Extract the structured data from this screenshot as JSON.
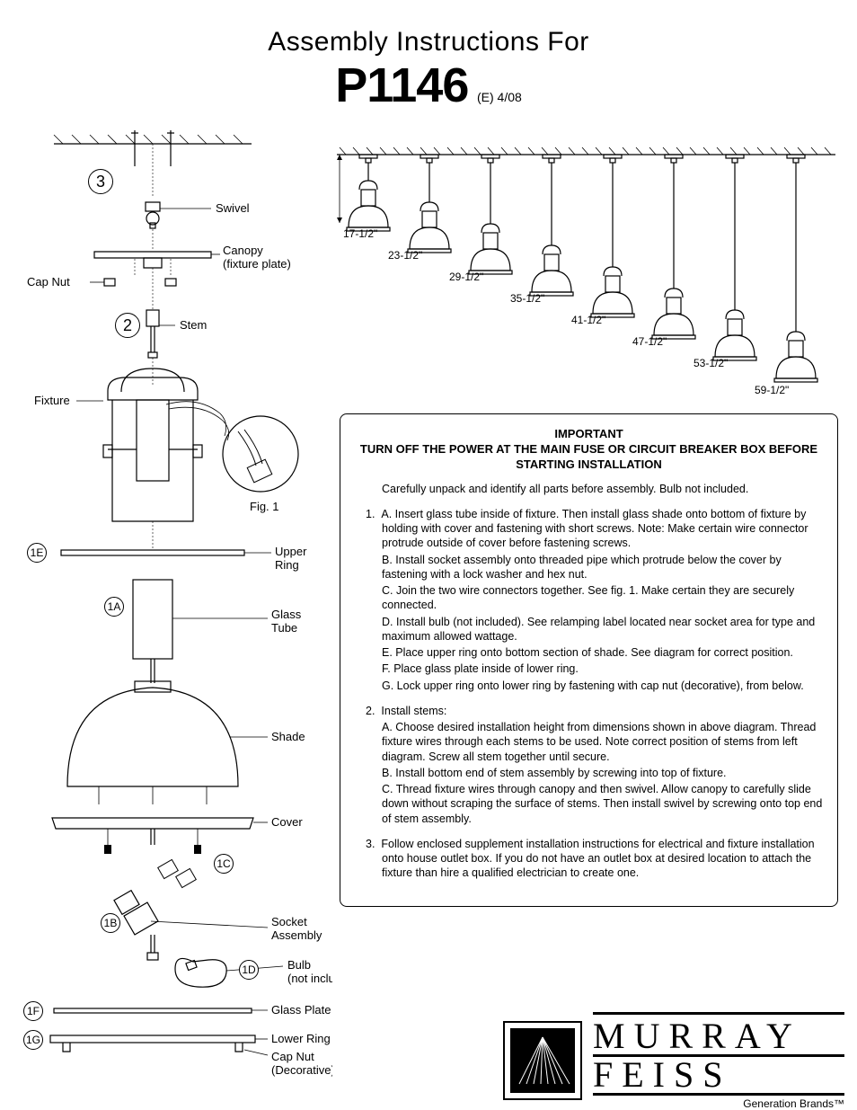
{
  "header": {
    "line1": "Assembly Instructions For",
    "model": "P1146",
    "revision": "(E)  4/08"
  },
  "left_diagram": {
    "callouts": {
      "step3": "3",
      "step2": "2",
      "s1a": "1A",
      "s1b": "1B",
      "s1c": "1C",
      "s1d": "1D",
      "s1e": "1E",
      "s1f": "1F",
      "s1g": "1G"
    },
    "labels": {
      "swivel": "Swivel",
      "canopy1": "Canopy",
      "canopy2": "(fixture plate)",
      "capnut": "Cap Nut",
      "stem": "Stem",
      "fixture": "Fixture",
      "fig1": "Fig. 1",
      "upper_ring1": "Upper",
      "upper_ring2": "Ring",
      "glass_tube1": "Glass",
      "glass_tube2": "Tube",
      "shade": "Shade",
      "cover": "Cover",
      "socket1": "Socket",
      "socket2": "Assembly",
      "bulb1": "Bulb",
      "bulb2": "(not included)",
      "glass_plate": "Glass Plate",
      "lower_ring": "Lower Ring",
      "capnut_dec1": "Cap Nut",
      "capnut_dec2": "(Decorative)"
    }
  },
  "heights_diagram": {
    "heights": [
      "17-1/2\"",
      "23-1/2\"",
      "29-1/2\"",
      "35-1/2\"",
      "41-1/2\"",
      "47-1/2\"",
      "53-1/2\"",
      "59-1/2\""
    ]
  },
  "instructions": {
    "important_title": "IMPORTANT",
    "important_body": "TURN OFF THE POWER AT THE MAIN FUSE OR CIRCUIT BREAKER BOX BEFORE STARTING INSTALLATION",
    "intro": "Carefully unpack and identify all parts before assembly.  Bulb not included.",
    "step1": {
      "num": "1.",
      "a": "A.  Insert glass tube inside of fixture.  Then install glass shade onto bottom of fixture by holding with cover and fastening with short screws. Note:  Make certain wire connector protrude outside of cover before fastening screws.",
      "b": "B.  Install socket assembly onto threaded pipe which protrude below the cover by fastening  with a lock washer and hex nut.",
      "c": "C.  Join the two wire connectors together.  See fig. 1.  Make certain they are securely connected.",
      "d": "D.  Install bulb (not included).  See relamping label located near socket area for type and maximum allowed wattage.",
      "e": "E.  Place upper ring onto bottom section of shade.  See diagram for correct position.",
      "f": "F.  Place glass plate inside of lower ring.",
      "g": "G.  Lock upper ring onto lower ring by fastening with cap nut (decorative), from below."
    },
    "step2": {
      "num": "2.",
      "title": "Install stems:",
      "a": "A.  Choose desired installation height from dimensions shown in above diagram.  Thread fixture wires through each stems to be used.  Note correct position of stems from left diagram.  Screw all stem together until secure.",
      "b": "B.  Install bottom end of stem assembly by screwing into top of fixture.",
      "c": "C.  Thread fixture wires through canopy and then swivel.  Allow canopy to carefully slide down without scraping the surface of stems. Then install swivel by screwing onto top end of stem assembly."
    },
    "step3": {
      "num": "3.",
      "body": "Follow enclosed supplement installation instructions for electrical and fixture installation onto house outlet box. If you do not have an outlet box at desired location to attach the fixture than hire a qualified electrician to create one."
    }
  },
  "brand": {
    "line1": "MURRAY",
    "line2": "FEISS",
    "sub": "Generation Brands™"
  },
  "colors": {
    "page_bg": "#ffffff",
    "ink": "#000000",
    "box_border": "#000000"
  }
}
